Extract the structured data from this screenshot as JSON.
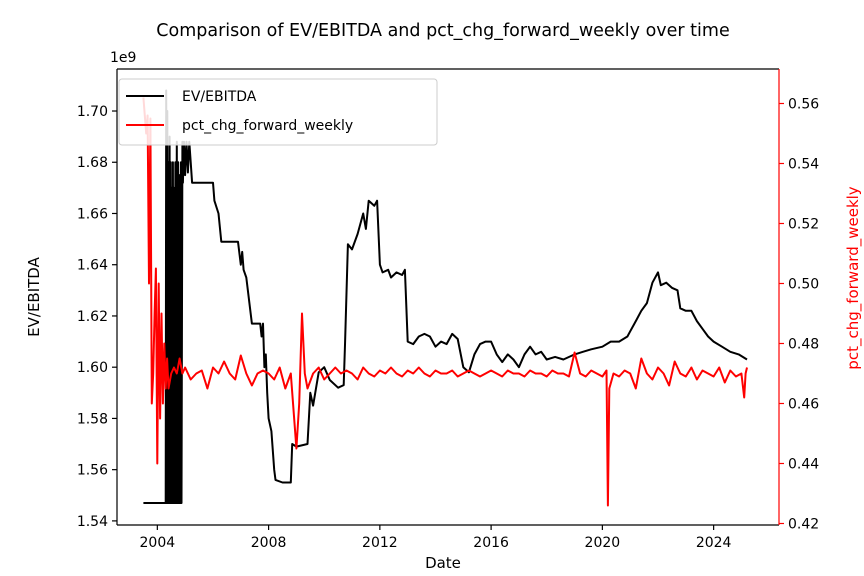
{
  "chart_data": {
    "type": "line",
    "title": "Comparison of EV/EBITDA and pct_chg_forward_weekly over time",
    "xlabel": "Date",
    "ylabel_left": "EV/EBITDA",
    "ylabel_right": "pct_chg_forward_weekly",
    "left_axis_multiplier": "1e9",
    "xlim": [
      2002.55,
      2026.35
    ],
    "x_ticks": [
      2004,
      2008,
      2012,
      2016,
      2020,
      2024
    ],
    "x_tick_labels": [
      "2004",
      "2008",
      "2012",
      "2016",
      "2020",
      "2024"
    ],
    "ylim_left": [
      1.5384,
      1.7164
    ],
    "y_ticks_left": [
      1.54,
      1.56,
      1.58,
      1.6,
      1.62,
      1.64,
      1.66,
      1.68,
      1.7
    ],
    "y_tick_labels_left": [
      "1.54",
      "1.56",
      "1.58",
      "1.60",
      "1.62",
      "1.64",
      "1.66",
      "1.68",
      "1.70"
    ],
    "ylim_right": [
      0.4195,
      0.5715
    ],
    "y_ticks_right": [
      0.42,
      0.44,
      0.46,
      0.48,
      0.5,
      0.52,
      0.54,
      0.56
    ],
    "y_tick_labels_right": [
      "0.42",
      "0.44",
      "0.46",
      "0.48",
      "0.50",
      "0.52",
      "0.54",
      "0.56"
    ],
    "legend_position": "top-left",
    "grid": false,
    "colors": {
      "ev": "#000000",
      "pct": "#ff0000",
      "axis": "#000000"
    },
    "series": [
      {
        "name": "EV/EBITDA",
        "axis": "left",
        "color": "#000000",
        "points": [
          [
            2003.5,
            1.547
          ],
          [
            2004.3,
            1.547
          ],
          [
            2004.32,
            1.708
          ],
          [
            2004.34,
            1.547
          ],
          [
            2004.36,
            1.7
          ],
          [
            2004.38,
            1.547
          ],
          [
            2004.4,
            1.68
          ],
          [
            2004.42,
            1.547
          ],
          [
            2004.44,
            1.69
          ],
          [
            2004.46,
            1.547
          ],
          [
            2004.48,
            1.68
          ],
          [
            2004.5,
            1.547
          ],
          [
            2004.52,
            1.67
          ],
          [
            2004.54,
            1.547
          ],
          [
            2004.56,
            1.68
          ],
          [
            2004.58,
            1.547
          ],
          [
            2004.6,
            1.67
          ],
          [
            2004.62,
            1.547
          ],
          [
            2004.65,
            1.68
          ],
          [
            2004.67,
            1.547
          ],
          [
            2004.7,
            1.688
          ],
          [
            2004.72,
            1.547
          ],
          [
            2004.75,
            1.68
          ],
          [
            2004.77,
            1.547
          ],
          [
            2004.8,
            1.675
          ],
          [
            2004.82,
            1.547
          ],
          [
            2004.85,
            1.68
          ],
          [
            2004.87,
            1.547
          ],
          [
            2004.9,
            1.688
          ],
          [
            2004.92,
            1.672
          ],
          [
            2004.96,
            1.688
          ],
          [
            2005.0,
            1.675
          ],
          [
            2005.05,
            1.688
          ],
          [
            2005.1,
            1.676
          ],
          [
            2005.15,
            1.688
          ],
          [
            2005.2,
            1.68
          ],
          [
            2005.25,
            1.672
          ],
          [
            2005.4,
            1.672
          ],
          [
            2005.5,
            1.672
          ],
          [
            2005.8,
            1.672
          ],
          [
            2006.0,
            1.672
          ],
          [
            2006.05,
            1.665
          ],
          [
            2006.2,
            1.66
          ],
          [
            2006.3,
            1.649
          ],
          [
            2006.6,
            1.649
          ],
          [
            2006.9,
            1.649
          ],
          [
            2007.0,
            1.64
          ],
          [
            2007.05,
            1.645
          ],
          [
            2007.1,
            1.638
          ],
          [
            2007.2,
            1.635
          ],
          [
            2007.4,
            1.617
          ],
          [
            2007.7,
            1.617
          ],
          [
            2007.75,
            1.612
          ],
          [
            2007.8,
            1.617
          ],
          [
            2007.85,
            1.6
          ],
          [
            2007.9,
            1.605
          ],
          [
            2007.95,
            1.59
          ],
          [
            2008.0,
            1.58
          ],
          [
            2008.1,
            1.575
          ],
          [
            2008.2,
            1.56
          ],
          [
            2008.25,
            1.556
          ],
          [
            2008.5,
            1.555
          ],
          [
            2008.8,
            1.555
          ],
          [
            2008.85,
            1.57
          ],
          [
            2009.0,
            1.569
          ],
          [
            2009.4,
            1.57
          ],
          [
            2009.5,
            1.59
          ],
          [
            2009.6,
            1.585
          ],
          [
            2009.8,
            1.598
          ],
          [
            2010.0,
            1.6
          ],
          [
            2010.2,
            1.595
          ],
          [
            2010.5,
            1.592
          ],
          [
            2010.7,
            1.593
          ],
          [
            2010.75,
            1.61
          ],
          [
            2010.85,
            1.648
          ],
          [
            2011.0,
            1.646
          ],
          [
            2011.2,
            1.652
          ],
          [
            2011.4,
            1.66
          ],
          [
            2011.5,
            1.654
          ],
          [
            2011.6,
            1.665
          ],
          [
            2011.8,
            1.663
          ],
          [
            2011.9,
            1.665
          ],
          [
            2012.0,
            1.64
          ],
          [
            2012.1,
            1.637
          ],
          [
            2012.3,
            1.638
          ],
          [
            2012.4,
            1.635
          ],
          [
            2012.6,
            1.637
          ],
          [
            2012.8,
            1.636
          ],
          [
            2012.9,
            1.638
          ],
          [
            2013.0,
            1.61
          ],
          [
            2013.2,
            1.609
          ],
          [
            2013.4,
            1.612
          ],
          [
            2013.6,
            1.613
          ],
          [
            2013.8,
            1.612
          ],
          [
            2014.0,
            1.608
          ],
          [
            2014.2,
            1.61
          ],
          [
            2014.4,
            1.609
          ],
          [
            2014.6,
            1.613
          ],
          [
            2014.8,
            1.611
          ],
          [
            2015.0,
            1.6
          ],
          [
            2015.2,
            1.598
          ],
          [
            2015.4,
            1.605
          ],
          [
            2015.6,
            1.609
          ],
          [
            2015.8,
            1.61
          ],
          [
            2016.0,
            1.61
          ],
          [
            2016.2,
            1.605
          ],
          [
            2016.4,
            1.602
          ],
          [
            2016.6,
            1.605
          ],
          [
            2016.8,
            1.603
          ],
          [
            2017.0,
            1.6
          ],
          [
            2017.2,
            1.605
          ],
          [
            2017.4,
            1.608
          ],
          [
            2017.6,
            1.605
          ],
          [
            2017.8,
            1.606
          ],
          [
            2018.0,
            1.603
          ],
          [
            2018.3,
            1.604
          ],
          [
            2018.6,
            1.603
          ],
          [
            2019.0,
            1.605
          ],
          [
            2019.3,
            1.606
          ],
          [
            2019.6,
            1.607
          ],
          [
            2020.0,
            1.608
          ],
          [
            2020.3,
            1.61
          ],
          [
            2020.6,
            1.61
          ],
          [
            2020.9,
            1.612
          ],
          [
            2021.0,
            1.614
          ],
          [
            2021.2,
            1.618
          ],
          [
            2021.4,
            1.622
          ],
          [
            2021.6,
            1.625
          ],
          [
            2021.8,
            1.633
          ],
          [
            2022.0,
            1.637
          ],
          [
            2022.1,
            1.632
          ],
          [
            2022.3,
            1.633
          ],
          [
            2022.5,
            1.631
          ],
          [
            2022.7,
            1.63
          ],
          [
            2022.8,
            1.623
          ],
          [
            2023.0,
            1.622
          ],
          [
            2023.2,
            1.622
          ],
          [
            2023.4,
            1.618
          ],
          [
            2023.6,
            1.615
          ],
          [
            2023.8,
            1.612
          ],
          [
            2024.0,
            1.61
          ],
          [
            2024.3,
            1.608
          ],
          [
            2024.6,
            1.606
          ],
          [
            2024.9,
            1.605
          ],
          [
            2025.2,
            1.603
          ]
        ]
      },
      {
        "name": "pct_chg_forward_weekly",
        "axis": "right",
        "color": "#ff0000",
        "points": [
          [
            2003.5,
            0.562
          ],
          [
            2003.6,
            0.55
          ],
          [
            2003.65,
            0.556
          ],
          [
            2003.7,
            0.5
          ],
          [
            2003.75,
            0.555
          ],
          [
            2003.8,
            0.46
          ],
          [
            2003.85,
            0.47
          ],
          [
            2003.9,
            0.49
          ],
          [
            2003.95,
            0.505
          ],
          [
            2004.0,
            0.44
          ],
          [
            2004.05,
            0.5
          ],
          [
            2004.1,
            0.455
          ],
          [
            2004.15,
            0.49
          ],
          [
            2004.2,
            0.46
          ],
          [
            2004.25,
            0.48
          ],
          [
            2004.3,
            0.465
          ],
          [
            2004.35,
            0.475
          ],
          [
            2004.4,
            0.465
          ],
          [
            2004.5,
            0.47
          ],
          [
            2004.6,
            0.472
          ],
          [
            2004.7,
            0.47
          ],
          [
            2004.8,
            0.475
          ],
          [
            2004.9,
            0.47
          ],
          [
            2005.0,
            0.472
          ],
          [
            2005.2,
            0.468
          ],
          [
            2005.4,
            0.47
          ],
          [
            2005.6,
            0.471
          ],
          [
            2005.8,
            0.465
          ],
          [
            2006.0,
            0.472
          ],
          [
            2006.2,
            0.47
          ],
          [
            2006.4,
            0.474
          ],
          [
            2006.6,
            0.47
          ],
          [
            2006.8,
            0.468
          ],
          [
            2007.0,
            0.476
          ],
          [
            2007.2,
            0.47
          ],
          [
            2007.4,
            0.466
          ],
          [
            2007.6,
            0.47
          ],
          [
            2007.8,
            0.471
          ],
          [
            2008.0,
            0.47
          ],
          [
            2008.2,
            0.468
          ],
          [
            2008.4,
            0.472
          ],
          [
            2008.6,
            0.465
          ],
          [
            2008.8,
            0.47
          ],
          [
            2009.0,
            0.445
          ],
          [
            2009.1,
            0.46
          ],
          [
            2009.2,
            0.49
          ],
          [
            2009.3,
            0.47
          ],
          [
            2009.4,
            0.465
          ],
          [
            2009.6,
            0.47
          ],
          [
            2009.8,
            0.472
          ],
          [
            2010.0,
            0.468
          ],
          [
            2010.2,
            0.47
          ],
          [
            2010.4,
            0.472
          ],
          [
            2010.6,
            0.47
          ],
          [
            2010.8,
            0.471
          ],
          [
            2011.0,
            0.47
          ],
          [
            2011.2,
            0.468
          ],
          [
            2011.4,
            0.472
          ],
          [
            2011.6,
            0.47
          ],
          [
            2011.8,
            0.469
          ],
          [
            2012.0,
            0.471
          ],
          [
            2012.2,
            0.47
          ],
          [
            2012.4,
            0.472
          ],
          [
            2012.6,
            0.47
          ],
          [
            2012.8,
            0.469
          ],
          [
            2013.0,
            0.471
          ],
          [
            2013.2,
            0.47
          ],
          [
            2013.4,
            0.472
          ],
          [
            2013.6,
            0.47
          ],
          [
            2013.8,
            0.469
          ],
          [
            2014.0,
            0.471
          ],
          [
            2014.2,
            0.47
          ],
          [
            2014.4,
            0.47
          ],
          [
            2014.6,
            0.471
          ],
          [
            2014.8,
            0.469
          ],
          [
            2015.0,
            0.47
          ],
          [
            2015.2,
            0.471
          ],
          [
            2015.4,
            0.47
          ],
          [
            2015.6,
            0.469
          ],
          [
            2015.8,
            0.47
          ],
          [
            2016.0,
            0.471
          ],
          [
            2016.2,
            0.47
          ],
          [
            2016.4,
            0.469
          ],
          [
            2016.6,
            0.471
          ],
          [
            2016.8,
            0.47
          ],
          [
            2017.0,
            0.47
          ],
          [
            2017.2,
            0.469
          ],
          [
            2017.4,
            0.471
          ],
          [
            2017.6,
            0.47
          ],
          [
            2017.8,
            0.47
          ],
          [
            2018.0,
            0.469
          ],
          [
            2018.2,
            0.471
          ],
          [
            2018.4,
            0.47
          ],
          [
            2018.6,
            0.47
          ],
          [
            2018.8,
            0.469
          ],
          [
            2019.0,
            0.477
          ],
          [
            2019.2,
            0.47
          ],
          [
            2019.4,
            0.469
          ],
          [
            2019.6,
            0.471
          ],
          [
            2019.8,
            0.47
          ],
          [
            2020.0,
            0.469
          ],
          [
            2020.15,
            0.471
          ],
          [
            2020.2,
            0.426
          ],
          [
            2020.25,
            0.465
          ],
          [
            2020.4,
            0.47
          ],
          [
            2020.6,
            0.469
          ],
          [
            2020.8,
            0.471
          ],
          [
            2021.0,
            0.47
          ],
          [
            2021.2,
            0.465
          ],
          [
            2021.4,
            0.475
          ],
          [
            2021.6,
            0.47
          ],
          [
            2021.8,
            0.468
          ],
          [
            2022.0,
            0.472
          ],
          [
            2022.2,
            0.47
          ],
          [
            2022.4,
            0.466
          ],
          [
            2022.6,
            0.474
          ],
          [
            2022.8,
            0.47
          ],
          [
            2023.0,
            0.469
          ],
          [
            2023.2,
            0.472
          ],
          [
            2023.4,
            0.468
          ],
          [
            2023.6,
            0.471
          ],
          [
            2023.8,
            0.47
          ],
          [
            2024.0,
            0.469
          ],
          [
            2024.2,
            0.472
          ],
          [
            2024.4,
            0.467
          ],
          [
            2024.6,
            0.471
          ],
          [
            2024.8,
            0.469
          ],
          [
            2025.0,
            0.47
          ],
          [
            2025.1,
            0.462
          ],
          [
            2025.15,
            0.47
          ],
          [
            2025.2,
            0.472
          ]
        ]
      }
    ],
    "legend": [
      {
        "label": "EV/EBITDA",
        "color": "#000000"
      },
      {
        "label": "pct_chg_forward_weekly",
        "color": "#ff0000"
      }
    ]
  }
}
